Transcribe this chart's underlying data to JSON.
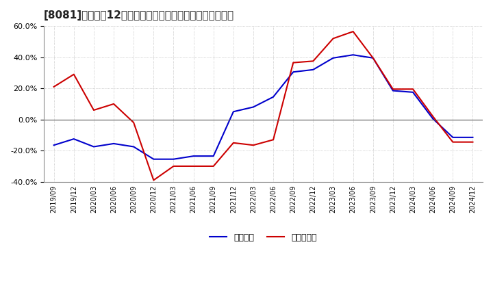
{
  "title": "[8081]　利益だ12か月移動合計の対前年同期増減率の推移",
  "legend_labels": [
    "経常利益",
    "当期純利益"
  ],
  "line_colors": [
    "#0000cc",
    "#cc0000"
  ],
  "background_color": "#ffffff",
  "plot_bg_color": "#ffffff",
  "ylim": [
    -0.4,
    0.6
  ],
  "yticks": [
    -0.4,
    -0.2,
    0.0,
    0.2,
    0.4,
    0.6
  ],
  "dates": [
    "2019/09",
    "2019/12",
    "2020/03",
    "2020/06",
    "2020/09",
    "2020/12",
    "2021/03",
    "2021/06",
    "2021/09",
    "2021/12",
    "2022/03",
    "2022/06",
    "2022/09",
    "2022/12",
    "2023/03",
    "2023/06",
    "2023/09",
    "2023/12",
    "2024/03",
    "2024/06",
    "2024/09",
    "2024/12"
  ],
  "series_blue": [
    -0.165,
    -0.125,
    -0.175,
    -0.155,
    -0.175,
    -0.255,
    -0.255,
    -0.235,
    -0.235,
    0.05,
    0.08,
    0.145,
    0.305,
    0.32,
    0.395,
    0.415,
    0.395,
    0.185,
    0.175,
    0.005,
    -0.115,
    -0.115
  ],
  "series_red": [
    0.21,
    0.29,
    0.06,
    0.1,
    -0.02,
    -0.39,
    -0.3,
    -0.3,
    -0.3,
    -0.15,
    -0.165,
    -0.13,
    0.365,
    0.375,
    0.52,
    0.565,
    0.395,
    0.195,
    0.195,
    0.02,
    -0.145,
    -0.145
  ],
  "title_fontsize": 11,
  "tick_fontsize": 8,
  "legend_fontsize": 9,
  "linewidth": 1.5,
  "grid_color": "#aaaaaa",
  "zero_line_color": "#555555",
  "spine_color": "#888888"
}
